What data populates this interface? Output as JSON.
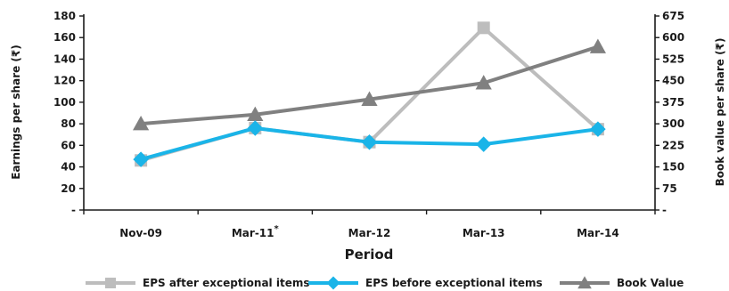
{
  "chart_data": {
    "type": "line",
    "categories": [
      "Nov-09",
      "Mar-11",
      "Mar-12",
      "Mar-13",
      "Mar-14"
    ],
    "category_superscripts": [
      "",
      "*",
      "",
      "",
      ""
    ],
    "xlabel": "Period",
    "ylabel_left": "Earnings per share (₹)",
    "ylabel_right": "Book value per share (₹)",
    "y_left": {
      "range": [
        0,
        180
      ],
      "ticks": [
        0,
        20,
        40,
        60,
        80,
        100,
        120,
        140,
        160,
        180
      ],
      "tick_labels": [
        "-",
        "20",
        "40",
        "60",
        "80",
        "100",
        "120",
        "140",
        "160",
        "180"
      ]
    },
    "y_right": {
      "range": [
        0,
        675
      ],
      "ticks": [
        0,
        75,
        150,
        225,
        300,
        375,
        450,
        525,
        600,
        675
      ],
      "tick_labels": [
        "-",
        "75",
        "150",
        "225",
        "300",
        "375",
        "450",
        "525",
        "600",
        "675"
      ]
    },
    "grid": false,
    "legend_position": "bottom",
    "series": [
      {
        "name": "EPS after exceptional items",
        "axis": "left",
        "color": "#bdbdbd",
        "marker": "square",
        "values": [
          46,
          76,
          63,
          169,
          75
        ]
      },
      {
        "name": "EPS before exceptional items",
        "axis": "left",
        "color": "#1ab4e8",
        "marker": "diamond",
        "values": [
          47,
          76,
          63,
          61,
          75
        ]
      },
      {
        "name": "Book Value",
        "axis": "right",
        "color": "#808080",
        "marker": "triangle",
        "values": [
          300,
          332,
          385,
          442,
          568
        ]
      }
    ]
  }
}
